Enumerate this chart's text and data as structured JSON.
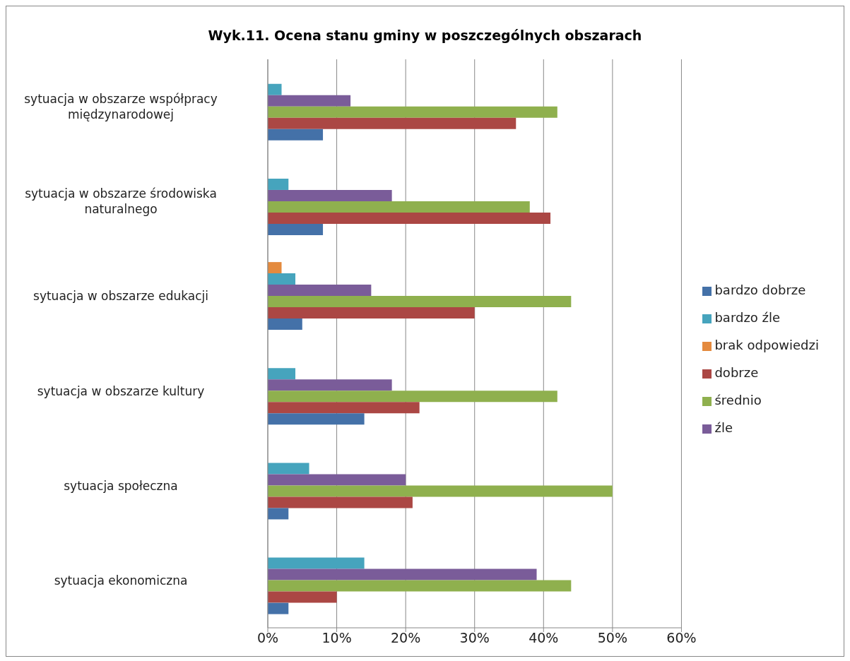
{
  "chart_data": {
    "type": "bar",
    "orientation": "horizontal",
    "title": "Wyk.11. Ocena stanu gminy w poszczególnych obszarach",
    "categories": [
      "sytuacja w obszarze współpracy międzynarodowej",
      "sytuacja w obszarze środowiska naturalnego",
      "sytuacja w obszarze edukacji",
      "sytuacja w obszarze kultury",
      "sytuacja społeczna",
      "sytuacja ekonomiczna"
    ],
    "series": [
      {
        "name": "brak odpowiedzi",
        "color": "#e48a3e",
        "values": [
          null,
          null,
          2,
          null,
          null,
          null
        ]
      },
      {
        "name": "bardzo źle",
        "color": "#46a4bd",
        "values": [
          2,
          3,
          4,
          4,
          6,
          14
        ]
      },
      {
        "name": "źle",
        "color": "#7a5c99",
        "values": [
          12,
          18,
          15,
          18,
          20,
          39
        ]
      },
      {
        "name": "średnio",
        "color": "#8fb04e",
        "values": [
          42,
          38,
          44,
          42,
          50,
          44
        ]
      },
      {
        "name": "dobrze",
        "color": "#ab4744",
        "values": [
          36,
          41,
          30,
          22,
          21,
          10
        ]
      },
      {
        "name": "bardzo dobrze",
        "color": "#4471a8",
        "values": [
          8,
          8,
          5,
          14,
          3,
          3
        ]
      }
    ],
    "xlim": [
      0,
      60
    ],
    "xticks": [
      {
        "value": 0,
        "label": "0%"
      },
      {
        "value": 10,
        "label": "10%"
      },
      {
        "value": 20,
        "label": "20%"
      },
      {
        "value": 30,
        "label": "30%"
      },
      {
        "value": 40,
        "label": "40%"
      },
      {
        "value": 50,
        "label": "50%"
      },
      {
        "value": 60,
        "label": "60%"
      }
    ],
    "grid": "x",
    "legend": "right"
  }
}
